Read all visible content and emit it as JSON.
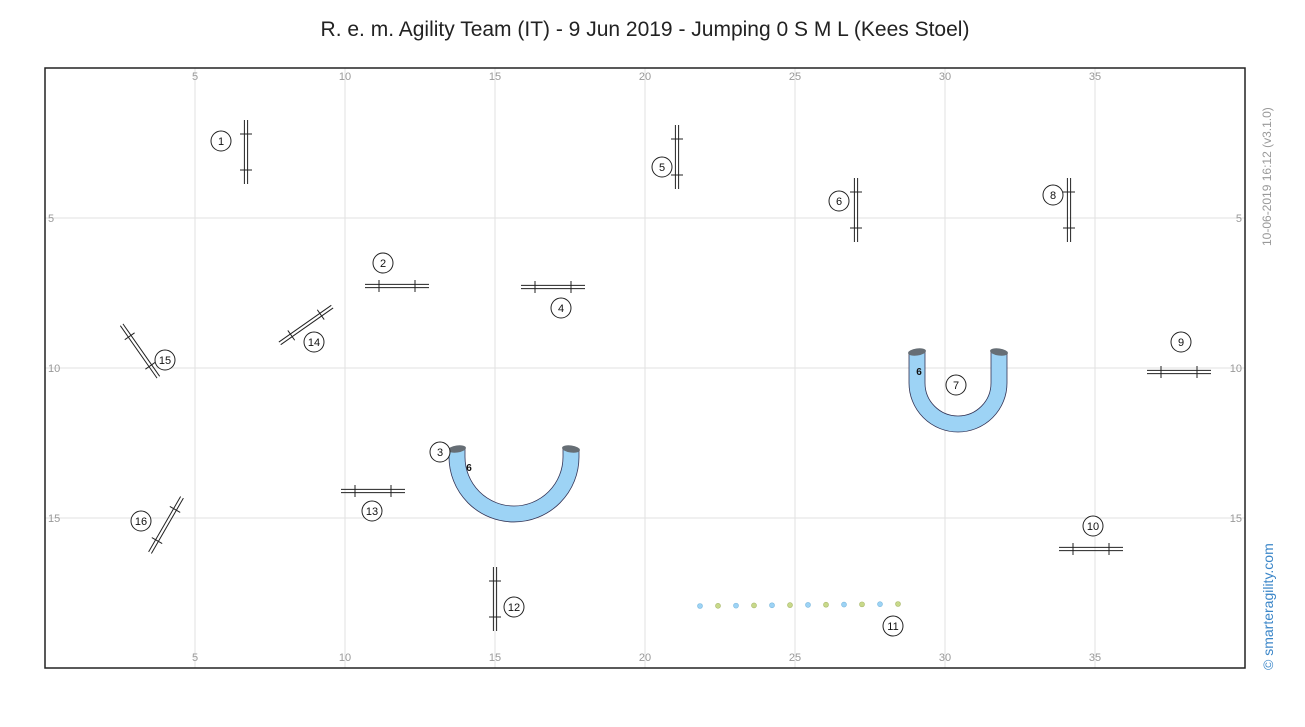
{
  "title": "R. e. m. Agility Team (IT) - 9 Jun 2019 - Jumping 0 S M L (Kees Stoel)",
  "timestamp": "10-06-2019 16:12  (v3.1.0)",
  "copyright": "© smarteragility.com",
  "colors": {
    "tunnel_fill": "#9dd3f5",
    "tunnel_end": "#666e75",
    "grid": "#dddddd",
    "border": "#222222",
    "weave_blue": "#9dd3f5",
    "weave_green": "#c8d98a",
    "copyright": "#3b86c8"
  },
  "axis": {
    "x_ticks": [
      "5",
      "10",
      "15",
      "20",
      "25",
      "30",
      "35"
    ],
    "y_ticks": [
      "5",
      "10",
      "15"
    ]
  },
  "obstacles": [
    {
      "type": "jump",
      "number": "1"
    },
    {
      "type": "jump",
      "number": "2"
    },
    {
      "type": "tunnel",
      "number": "3",
      "label": "6"
    },
    {
      "type": "jump",
      "number": "4"
    },
    {
      "type": "jump",
      "number": "5"
    },
    {
      "type": "jump",
      "number": "6"
    },
    {
      "type": "tunnel",
      "number": "7",
      "label": "6"
    },
    {
      "type": "jump",
      "number": "8"
    },
    {
      "type": "jump",
      "number": "9"
    },
    {
      "type": "jump",
      "number": "10"
    },
    {
      "type": "weave",
      "number": "11",
      "poles": 12
    },
    {
      "type": "jump",
      "number": "12"
    },
    {
      "type": "jump",
      "number": "13"
    },
    {
      "type": "jump",
      "number": "14"
    },
    {
      "type": "jump",
      "number": "15"
    },
    {
      "type": "jump",
      "number": "16"
    }
  ]
}
